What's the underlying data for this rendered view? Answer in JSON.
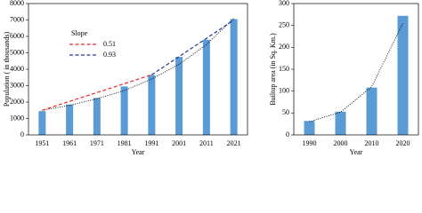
{
  "chart_data": [
    {
      "type": "bar",
      "x_label": "Year",
      "y_label": "Population ( in thousands)",
      "categories": [
        "1951",
        "1961",
        "1971",
        "1981",
        "1991",
        "2001",
        "2011",
        "2021"
      ],
      "values": [
        1450,
        1850,
        2250,
        2950,
        3650,
        4750,
        5800,
        7050
      ],
      "color": "#5b9bd5",
      "ylim": [
        0,
        8000
      ],
      "yticks": [
        0,
        1000,
        2000,
        3000,
        4000,
        5000,
        6000,
        7000,
        8000
      ],
      "legend_title": "Slope",
      "lines": [
        {
          "name": "0.51",
          "color": "#e8272a",
          "values": [
            1500,
            2040,
            2580,
            3120,
            3660,
            null,
            null,
            null
          ]
        },
        {
          "name": "0.93",
          "color": "#1f3a93",
          "values": [
            null,
            null,
            null,
            null,
            3660,
            4770,
            5880,
            7000
          ]
        }
      ],
      "trendline": {
        "color": "#000000",
        "values": [
          1500,
          1800,
          2200,
          2700,
          3400,
          4300,
          5500,
          7100
        ]
      }
    },
    {
      "type": "bar",
      "x_label": "Year",
      "y_label": "Builtup area (in Sq. Km.)",
      "categories": [
        "1990",
        "2000",
        "2010",
        "2020"
      ],
      "values": [
        32,
        53,
        108,
        272
      ],
      "color": "#5b9bd5",
      "ylim": [
        0,
        300
      ],
      "yticks": [
        0,
        50,
        100,
        150,
        200,
        250,
        300
      ],
      "trendline": {
        "color": "#000000",
        "values": [
          30,
          52,
          110,
          255
        ]
      }
    }
  ]
}
